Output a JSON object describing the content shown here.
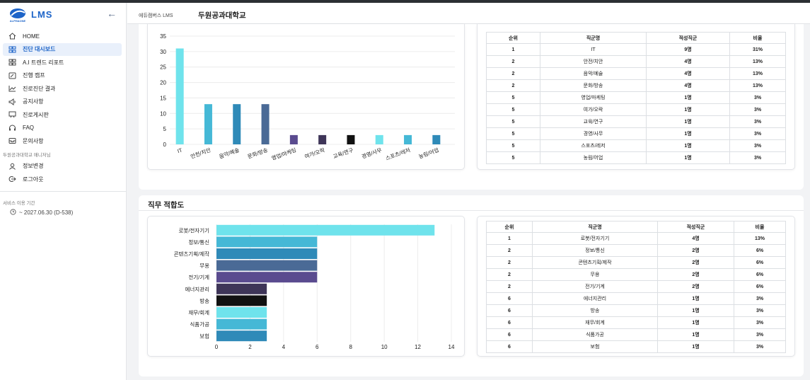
{
  "app": {
    "logo_sub": "ALPHAONE",
    "name": "LMS"
  },
  "sidebar": {
    "items": [
      {
        "label": "HOME",
        "icon": "home-icon"
      },
      {
        "label": "진단 대시보드",
        "icon": "dashboard-icon"
      },
      {
        "label": "A.I 트렌드 리포트",
        "icon": "grid-icon"
      },
      {
        "label": "진행 캠프",
        "icon": "edit-icon"
      },
      {
        "label": "진로진단 결과",
        "icon": "chart-line-icon"
      },
      {
        "label": "공지사항",
        "icon": "megaphone-icon"
      },
      {
        "label": "진로게시판",
        "icon": "board-icon"
      },
      {
        "label": "FAQ",
        "icon": "headset-icon"
      },
      {
        "label": "문의사항",
        "icon": "inbox-icon"
      }
    ],
    "section_label": "두원공과대학교 매니저님",
    "account_items": [
      {
        "label": "정보변경",
        "icon": "user-icon"
      },
      {
        "label": "로그아웃",
        "icon": "logout-icon"
      }
    ],
    "service_label": "서비스 이용 기간",
    "service_date": "~ 2027.06.30 (D-538)"
  },
  "header": {
    "breadcrumb": "에듀캠버스 LMS",
    "school": "두원공과대학교"
  },
  "section2_title": "직무 적합도",
  "table1": {
    "headers": [
      "순위",
      "직군명",
      "적성직군",
      "비율"
    ],
    "rows": [
      [
        "1",
        "IT",
        "9명",
        "31%"
      ],
      [
        "2",
        "안전/치안",
        "4명",
        "13%"
      ],
      [
        "2",
        "음악/예술",
        "4명",
        "13%"
      ],
      [
        "2",
        "문화/방송",
        "4명",
        "13%"
      ],
      [
        "5",
        "영업/마케팅",
        "1명",
        "3%"
      ],
      [
        "5",
        "여가/오락",
        "1명",
        "3%"
      ],
      [
        "5",
        "교육/연구",
        "1명",
        "3%"
      ],
      [
        "5",
        "경영/사무",
        "1명",
        "3%"
      ],
      [
        "5",
        "스포츠/레저",
        "1명",
        "3%"
      ],
      [
        "5",
        "농림/어업",
        "1명",
        "3%"
      ]
    ]
  },
  "table2": {
    "headers": [
      "순위",
      "직군명",
      "적성직군",
      "비율"
    ],
    "rows": [
      [
        "1",
        "로봇/전자기기",
        "4명",
        "13%"
      ],
      [
        "2",
        "정보/통신",
        "2명",
        "6%"
      ],
      [
        "2",
        "콘텐츠기획/제작",
        "2명",
        "6%"
      ],
      [
        "2",
        "무용",
        "2명",
        "6%"
      ],
      [
        "2",
        "전기/기계",
        "2명",
        "6%"
      ],
      [
        "6",
        "에너지관리",
        "1명",
        "3%"
      ],
      [
        "6",
        "방송",
        "1명",
        "3%"
      ],
      [
        "6",
        "재무/회계",
        "1명",
        "3%"
      ],
      [
        "6",
        "식품가공",
        "1명",
        "3%"
      ],
      [
        "6",
        "보험",
        "1명",
        "3%"
      ]
    ]
  },
  "chart_data": [
    {
      "type": "bar",
      "categories": [
        "IT",
        "안전/치안",
        "음악/예술",
        "문화/방송",
        "영업/마케팅",
        "여가/오락",
        "교육/연구",
        "경영/사무",
        "스포츠/레저",
        "농림/어업"
      ],
      "values": [
        31,
        13,
        13,
        13,
        3,
        3,
        3,
        3,
        3,
        3
      ],
      "colors": [
        "#6fe3ec",
        "#45b8d6",
        "#2f8ab8",
        "#4a6a96",
        "#5a4b8f",
        "#3e3558",
        "#111111",
        "#6fe3ec",
        "#45b8d6",
        "#2f8ab8"
      ],
      "ylim": [
        0,
        35
      ],
      "yticks": [
        0,
        5,
        10,
        15,
        20,
        25,
        30,
        35
      ],
      "grid": true
    },
    {
      "type": "bar",
      "orientation": "horizontal",
      "categories": [
        "로봇/전자기기",
        "정보/통신",
        "콘텐츠기획/제작",
        "무용",
        "전기/기계",
        "에너지관리",
        "방송",
        "재무/회계",
        "식품가공",
        "보험"
      ],
      "values": [
        13,
        6,
        6,
        6,
        6,
        3,
        3,
        3,
        3,
        3
      ],
      "colors": [
        "#6fe3ec",
        "#45b8d6",
        "#2f8ab8",
        "#4a6a96",
        "#5a4b8f",
        "#3e3558",
        "#111111",
        "#6fe3ec",
        "#45b8d6",
        "#2f8ab8"
      ],
      "xlim": [
        0,
        14
      ],
      "xticks": [
        0,
        2,
        4,
        6,
        8,
        10,
        12,
        14
      ],
      "grid": true
    }
  ]
}
